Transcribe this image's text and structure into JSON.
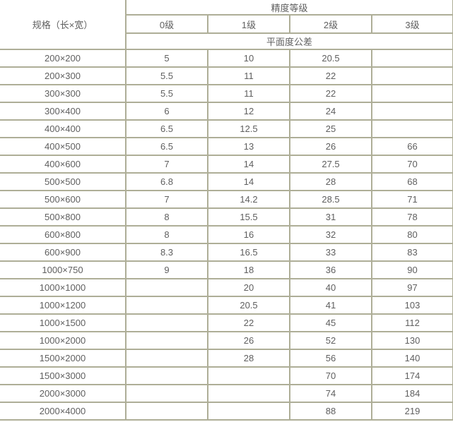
{
  "chart_data": {
    "type": "table",
    "spec_header": "规格（长×宽）",
    "grade_group_header": "精度等级",
    "grade_levels": [
      "0级",
      "1级",
      "2级",
      "3级"
    ],
    "tolerance_header": "平面度公差",
    "rows": [
      {
        "spec": "200×200",
        "values": [
          "5",
          "10",
          "20.5",
          ""
        ]
      },
      {
        "spec": "200×300",
        "values": [
          "5.5",
          "11",
          "22",
          ""
        ]
      },
      {
        "spec": "300×300",
        "values": [
          "5.5",
          "11",
          "22",
          ""
        ]
      },
      {
        "spec": "300×400",
        "values": [
          "6",
          "12",
          "24",
          ""
        ]
      },
      {
        "spec": "400×400",
        "values": [
          "6.5",
          "12.5",
          "25",
          ""
        ]
      },
      {
        "spec": "400×500",
        "values": [
          "6.5",
          "13",
          "26",
          "66"
        ]
      },
      {
        "spec": "400×600",
        "values": [
          "7",
          "14",
          "27.5",
          "70"
        ]
      },
      {
        "spec": "500×500",
        "values": [
          "6.8",
          "14",
          "28",
          "68"
        ]
      },
      {
        "spec": "500×600",
        "values": [
          "7",
          "14.2",
          "28.5",
          "71"
        ]
      },
      {
        "spec": "500×800",
        "values": [
          "8",
          "15.5",
          "31",
          "78"
        ]
      },
      {
        "spec": "600×800",
        "values": [
          "8",
          "16",
          "32",
          "80"
        ]
      },
      {
        "spec": "600×900",
        "values": [
          "8.3",
          "16.5",
          "33",
          "83"
        ]
      },
      {
        "spec": "1000×750",
        "values": [
          "9",
          "18",
          "36",
          "90"
        ]
      },
      {
        "spec": "1000×1000",
        "values": [
          "",
          "20",
          "40",
          "97"
        ]
      },
      {
        "spec": "1000×1200",
        "values": [
          "",
          "20.5",
          "41",
          "103"
        ]
      },
      {
        "spec": "1000×1500",
        "values": [
          "",
          "22",
          "45",
          "112"
        ]
      },
      {
        "spec": "1000×2000",
        "values": [
          "",
          "26",
          "52",
          "130"
        ]
      },
      {
        "spec": "1500×2000",
        "values": [
          "",
          "28",
          "56",
          "140"
        ]
      },
      {
        "spec": "1500×3000",
        "values": [
          "",
          "",
          "70",
          "174"
        ]
      },
      {
        "spec": "2000×3000",
        "values": [
          "",
          "",
          "74",
          "184"
        ]
      },
      {
        "spec": "2000×4000",
        "values": [
          "",
          "",
          "88",
          "219"
        ]
      }
    ]
  },
  "colors": {
    "border": "#aeae97",
    "text": "#5f5f5f",
    "background": "#ffffff"
  }
}
